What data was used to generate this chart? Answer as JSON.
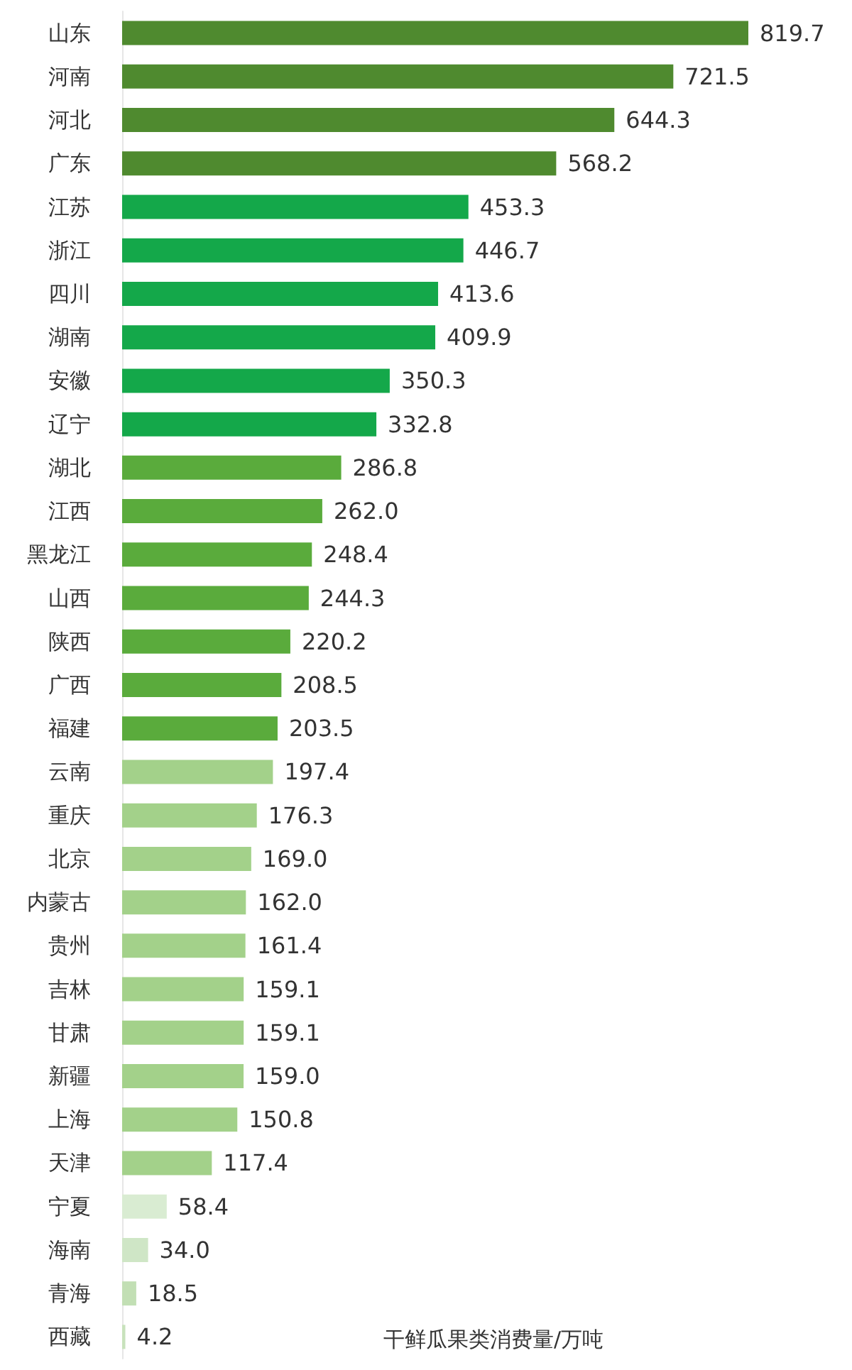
{
  "chart_data": {
    "type": "bar",
    "orientation": "horizontal",
    "xlabel": "干鲜瓜果类消费量/万吨",
    "categories": [
      "山东",
      "河南",
      "河北",
      "广东",
      "江苏",
      "浙江",
      "四川",
      "湖南",
      "安徽",
      "辽宁",
      "湖北",
      "江西",
      "黑龙江",
      "山西",
      "陕西",
      "广西",
      "福建",
      "云南",
      "重庆",
      "北京",
      "内蒙古",
      "贵州",
      "吉林",
      "甘肃",
      "新疆",
      "上海",
      "天津",
      "宁夏",
      "海南",
      "青海",
      "西藏"
    ],
    "values": [
      819.7,
      721.5,
      644.3,
      568.2,
      453.3,
      446.7,
      413.6,
      409.9,
      350.3,
      332.8,
      286.8,
      262.0,
      248.4,
      244.3,
      220.2,
      208.5,
      203.5,
      197.4,
      176.3,
      169.0,
      162.0,
      161.4,
      159.1,
      159.1,
      159.0,
      150.8,
      117.4,
      58.4,
      34.0,
      18.5,
      4.2
    ],
    "value_labels": [
      "819.7",
      "721.5",
      "644.3",
      "568.2",
      "453.3",
      "446.7",
      "413.6",
      "409.9",
      "350.3",
      "332.8",
      "286.8",
      "262.0",
      "248.4",
      "244.3",
      "220.2",
      "208.5",
      "203.5",
      "197.4",
      "176.3",
      "169.0",
      "162.0",
      "161.4",
      "159.1",
      "159.1",
      "159.0",
      "150.8",
      "117.4",
      "58.4",
      "34.0",
      "18.5",
      "4.2"
    ],
    "colors": [
      "#4f8a2f",
      "#4f8a2f",
      "#4f8a2f",
      "#4f8a2f",
      "#14a84a",
      "#14a84a",
      "#14a84a",
      "#14a84a",
      "#14a84a",
      "#14a84a",
      "#5aab3c",
      "#5aab3c",
      "#5aab3c",
      "#5aab3c",
      "#5aab3c",
      "#5aab3c",
      "#5aab3c",
      "#a3d18a",
      "#a3d18a",
      "#a3d18a",
      "#a3d18a",
      "#a3d18a",
      "#a3d18a",
      "#a3d18a",
      "#a3d18a",
      "#a3d18a",
      "#a3d18a",
      "#d9ecd2",
      "#cfe6c6",
      "#c2dfb4",
      "#c8e2bc"
    ]
  }
}
